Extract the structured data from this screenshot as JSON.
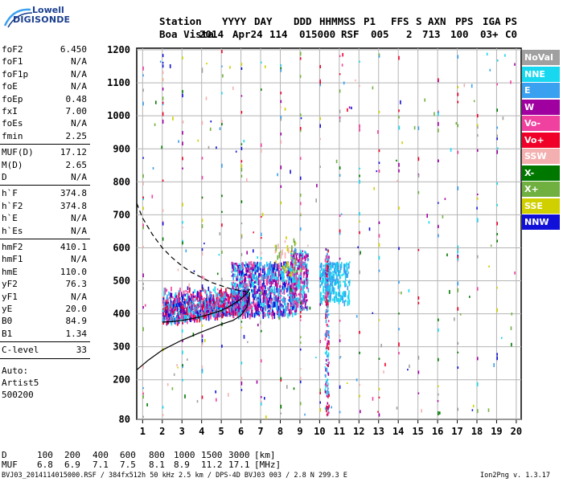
{
  "logo": {
    "line1": "Lowell",
    "line2": "DIGISONDE"
  },
  "header": {
    "labels": [
      "Station",
      "YYYY",
      "DAY",
      "DDD",
      "HHMMSS",
      "P1",
      "FFS",
      "S",
      "AXN",
      "PPS",
      "IGA",
      "PS"
    ],
    "values": [
      "Boa Vista",
      "2014",
      "Apr24",
      "114",
      "015000",
      "RSF",
      "005",
      "2",
      "713",
      "100",
      "03+",
      "C0"
    ]
  },
  "params": {
    "group1": [
      {
        "name": "foF2",
        "value": "6.450"
      },
      {
        "name": "foF1",
        "value": "N/A"
      },
      {
        "name": "foF1p",
        "value": "N/A"
      },
      {
        "name": "foE",
        "value": "N/A"
      },
      {
        "name": "foEp",
        "value": "0.48"
      },
      {
        "name": "fxI",
        "value": "7.00"
      },
      {
        "name": "foEs",
        "value": "N/A"
      },
      {
        "name": "fmin",
        "value": "2.25"
      }
    ],
    "group2": [
      {
        "name": "MUF(D)",
        "value": "17.12"
      },
      {
        "name": "M(D)",
        "value": "2.65"
      },
      {
        "name": "D",
        "value": "N/A"
      }
    ],
    "group3": [
      {
        "name": "h`F",
        "value": "374.8"
      },
      {
        "name": "h`F2",
        "value": "374.8"
      },
      {
        "name": "h`E",
        "value": "N/A"
      },
      {
        "name": "h`Es",
        "value": "N/A"
      }
    ],
    "group4": [
      {
        "name": "hmF2",
        "value": "410.1"
      },
      {
        "name": "hmF1",
        "value": "N/A"
      },
      {
        "name": "hmE",
        "value": "110.0"
      },
      {
        "name": "yF2",
        "value": "76.3"
      },
      {
        "name": "yF1",
        "value": "N/A"
      },
      {
        "name": "yE",
        "value": "20.0"
      },
      {
        "name": "B0",
        "value": "84.9"
      },
      {
        "name": "B1",
        "value": "1.34"
      }
    ],
    "group5": [
      {
        "name": "C-level",
        "value": "33"
      }
    ],
    "auto": [
      "Auto:",
      "Artist5",
      "500200"
    ]
  },
  "legend": [
    {
      "label": "NoVal",
      "color": "#a0a0a0"
    },
    {
      "label": "NNE",
      "color": "#18d8f0"
    },
    {
      "label": "E",
      "color": "#3aa0f0"
    },
    {
      "label": "W",
      "color": "#a000a0"
    },
    {
      "label": "Vo-",
      "color": "#f040a0"
    },
    {
      "label": "Vo+",
      "color": "#f00028"
    },
    {
      "label": "SSW",
      "color": "#f4b0b0"
    },
    {
      "label": "X-",
      "color": "#007800"
    },
    {
      "label": "X+",
      "color": "#70b040"
    },
    {
      "label": "SSE",
      "color": "#d0d000"
    },
    {
      "label": "NNW",
      "color": "#1010d8"
    }
  ],
  "bottom": {
    "d_label": "D",
    "d_values": [
      "100",
      "200",
      "400",
      "600",
      "800",
      "1000",
      "1500",
      "3000"
    ],
    "d_unit": "[km]",
    "muf_label": "MUF",
    "muf_values": [
      "6.8",
      "6.9",
      "7.1",
      "7.5",
      "8.1",
      "8.9",
      "11.2",
      "17.1"
    ],
    "muf_unit": "[MHz]"
  },
  "footer": {
    "left": "BVJ03_2014114015000.RSF / 384fx512h 50 kHz 2.5 km / DPS-4D BVJ03 003 / 2.8 N 299.3 E",
    "right": "Ion2Png v. 1.3.17"
  },
  "chart_data": {
    "type": "scatter",
    "xlim": [
      0.7,
      20.25
    ],
    "ylim": [
      80,
      1205
    ],
    "xticks": [
      "1",
      "2",
      "3",
      "4",
      "5",
      "6",
      "7",
      "8",
      "9",
      "10",
      "11",
      "12",
      "13",
      "14",
      "15",
      "16",
      "17",
      "18",
      "19",
      "20"
    ],
    "yticks": [
      "80",
      "200",
      "300",
      "400",
      "500",
      "600",
      "700",
      "800",
      "900",
      "1000",
      "1100",
      "1200"
    ],
    "grid": true,
    "legend_position": "right",
    "ytick_values": [
      80,
      200,
      300,
      400,
      500,
      600,
      700,
      800,
      900,
      1000,
      1100,
      1200
    ],
    "xtick_values": [
      1,
      2,
      3,
      4,
      5,
      6,
      7,
      8,
      9,
      10,
      11,
      12,
      13,
      14,
      15,
      16,
      17,
      18,
      19,
      20
    ],
    "profile_curve": {
      "x": [
        0.7,
        1.3,
        2.0,
        3.0,
        4.0,
        5.0,
        5.6,
        6.0,
        6.3,
        6.45
      ],
      "y": [
        230,
        260,
        290,
        320,
        345,
        368,
        380,
        395,
        420,
        465
      ]
    },
    "trace_curve": {
      "x": [
        2.0,
        2.5,
        3.0,
        3.5,
        4.0,
        4.5,
        5.0,
        5.5,
        6.0,
        6.3,
        6.45
      ],
      "y": [
        375,
        376,
        380,
        385,
        392,
        400,
        410,
        425,
        445,
        462,
        475
      ]
    },
    "dashed_curve": {
      "x": [
        0.7,
        1.0,
        1.5,
        2.0,
        2.5,
        3.0,
        3.5,
        4.0,
        4.5,
        5.0,
        5.5,
        6.0,
        6.45
      ],
      "y": [
        735,
        690,
        640,
        600,
        570,
        545,
        525,
        510,
        495,
        485,
        475,
        470,
        465
      ]
    },
    "echo_regions": [
      {
        "x": [
          2.0,
          6.4
        ],
        "y": [
          370,
          490
        ],
        "colors": [
          "#a000a0",
          "#f00028",
          "#18d8f0",
          "#3aa0f0",
          "#f040a0",
          "#1010d8"
        ],
        "count": 1100
      },
      {
        "x": [
          5.5,
          8.8
        ],
        "y": [
          400,
          560
        ],
        "colors": [
          "#18d8f0",
          "#3aa0f0",
          "#a000a0",
          "#1010d8",
          "#f040a0"
        ],
        "count": 900
      },
      {
        "x": [
          8.5,
          9.4
        ],
        "y": [
          420,
          600
        ],
        "colors": [
          "#18d8f0",
          "#a000a0",
          "#3aa0f0",
          "#f040a0"
        ],
        "count": 260
      },
      {
        "x": [
          10.0,
          11.5
        ],
        "y": [
          440,
          560
        ],
        "colors": [
          "#3aa0f0",
          "#18d8f0"
        ],
        "count": 260
      },
      {
        "x": [
          7.7,
          8.8
        ],
        "y": [
          520,
          640
        ],
        "colors": [
          "#d0d000",
          "#70b040",
          "#f4b0b0"
        ],
        "count": 40
      },
      {
        "x": [
          10.25,
          10.45
        ],
        "y": [
          90,
          600
        ],
        "colors": [
          "#f00028",
          "#a000a0",
          "#3aa0f0",
          "#18d8f0",
          "#f040a0"
        ],
        "count": 180
      },
      {
        "x": [
          1.0,
          20.0
        ],
        "y": [
          90,
          1200
        ],
        "colors": [
          "#a000a0",
          "#f00028",
          "#007800",
          "#3aa0f0",
          "#1010d8",
          "#18d8f0",
          "#a0a0a0",
          "#f040a0",
          "#d0d000",
          "#70b040",
          "#f4b0b0"
        ],
        "count": 520
      }
    ]
  }
}
